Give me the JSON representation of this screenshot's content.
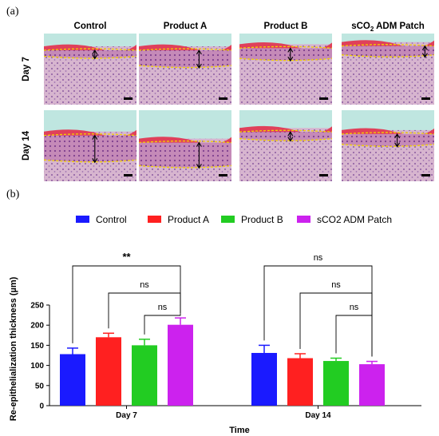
{
  "panel_a": {
    "label": "(a)",
    "columns": [
      {
        "name": "Control"
      },
      {
        "name": "Product A"
      },
      {
        "name": "Product B"
      },
      {
        "name": "sCO",
        "sub": "2",
        "rest": " ADM Patch"
      }
    ],
    "rows": [
      "Day 7",
      "Day 14"
    ]
  },
  "chart_data": {
    "type": "bar",
    "panel_label": "(b)",
    "title": "",
    "xlabel": "Time",
    "ylabel": "Re-epithelialization thickness (µm)",
    "categories": [
      "Day 7",
      "Day 14"
    ],
    "ylim": [
      0,
      250
    ],
    "yticks": [
      0,
      50,
      100,
      150,
      200,
      250
    ],
    "legend_position": "top",
    "grid": false,
    "series": [
      {
        "name": "Control",
        "color": "#1a1aff",
        "values": [
          128,
          131
        ],
        "errors": [
          15,
          19
        ]
      },
      {
        "name": "Product A",
        "color": "#ff2020",
        "values": [
          170,
          118
        ],
        "errors": [
          10,
          11
        ]
      },
      {
        "name": "Product B",
        "color": "#22cc22",
        "values": [
          150,
          111
        ],
        "errors": [
          15,
          7
        ]
      },
      {
        "name": "sCO2 ADM Patch",
        "color": "#cc22ee",
        "values": [
          201,
          103
        ],
        "errors": [
          17,
          7
        ]
      }
    ],
    "significance": [
      {
        "category": "Day 7",
        "from": "Control",
        "to": "sCO2 ADM Patch",
        "label": "**"
      },
      {
        "category": "Day 7",
        "from": "Product A",
        "to": "sCO2 ADM Patch",
        "label": "ns"
      },
      {
        "category": "Day 7",
        "from": "Product B",
        "to": "sCO2 ADM Patch",
        "label": "ns"
      },
      {
        "category": "Day 14",
        "from": "Control",
        "to": "sCO2 ADM Patch",
        "label": "ns"
      },
      {
        "category": "Day 14",
        "from": "Product A",
        "to": "sCO2 ADM Patch",
        "label": "ns"
      },
      {
        "category": "Day 14",
        "from": "Product B",
        "to": "sCO2 ADM Patch",
        "label": "ns"
      }
    ]
  }
}
